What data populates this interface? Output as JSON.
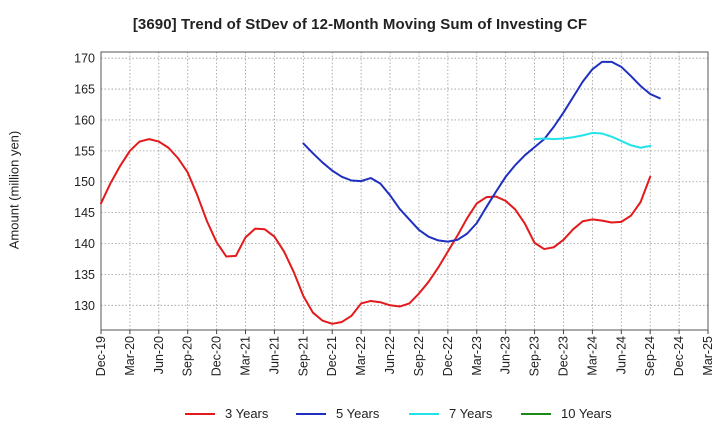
{
  "chart_data": {
    "type": "line",
    "title": "[3690]  Trend of StDev of 12-Month Moving Sum of Investing CF",
    "ylabel": "Amount (million yen)",
    "xlabel": "",
    "ylim": [
      126,
      171
    ],
    "yticks": [
      130,
      135,
      140,
      145,
      150,
      155,
      160,
      165,
      170
    ],
    "x_tick_labels": [
      "Dec-19",
      "Mar-20",
      "Jun-20",
      "Sep-20",
      "Dec-20",
      "Mar-21",
      "Jun-21",
      "Sep-21",
      "Dec-21",
      "Mar-22",
      "Jun-22",
      "Sep-22",
      "Dec-22",
      "Mar-23",
      "Jun-23",
      "Sep-23",
      "Dec-23",
      "Mar-24",
      "Jun-24",
      "Sep-24",
      "Dec-24",
      "Mar-25"
    ],
    "grid": true,
    "legend_position": "bottom",
    "series": [
      {
        "name": "3 Years",
        "color": "#e31a1c",
        "start": "Dec-19",
        "values": [
          146.5,
          149.8,
          152.6,
          155.0,
          156.5,
          156.9,
          156.5,
          155.5,
          153.8,
          151.5,
          147.8,
          143.6,
          140.2,
          137.9,
          138.0,
          141.0,
          142.4,
          142.3,
          141.1,
          138.7,
          135.4,
          131.5,
          128.8,
          127.5,
          127.0,
          127.3,
          128.3,
          130.3,
          130.7,
          130.5,
          130.0,
          129.8,
          130.3,
          131.9,
          133.8,
          136.1,
          138.7,
          141.3,
          144.1,
          146.5,
          147.5,
          147.6,
          146.9,
          145.5,
          143.2,
          140.1,
          139.1,
          139.4,
          140.6,
          142.3,
          143.6,
          143.9,
          143.7,
          143.4,
          143.5,
          144.5,
          146.7,
          150.8
        ]
      },
      {
        "name": "5 Years",
        "color": "#1f2fbf",
        "start": "Sep-21",
        "values": [
          156.2,
          154.6,
          153.1,
          151.8,
          150.8,
          150.2,
          150.1,
          150.6,
          149.7,
          147.8,
          145.6,
          143.9,
          142.2,
          141.1,
          140.5,
          140.3,
          140.6,
          141.6,
          143.3,
          145.9,
          148.4,
          150.8,
          152.7,
          154.3,
          155.6,
          156.9,
          158.9,
          161.2,
          163.7,
          166.2,
          168.2,
          169.4,
          169.4,
          168.6,
          167.1,
          165.5,
          164.2,
          163.5
        ]
      },
      {
        "name": "7 Years",
        "color": "#22e3e8",
        "start": "Sep-23",
        "values": [
          156.9,
          157.0,
          156.9,
          157.0,
          157.2,
          157.5,
          157.9,
          157.8,
          157.3,
          156.6,
          155.9,
          155.5,
          155.8
        ]
      },
      {
        "name": "10 Years",
        "color": "#1a8a1a",
        "start": "Sep-23",
        "values": []
      }
    ]
  }
}
